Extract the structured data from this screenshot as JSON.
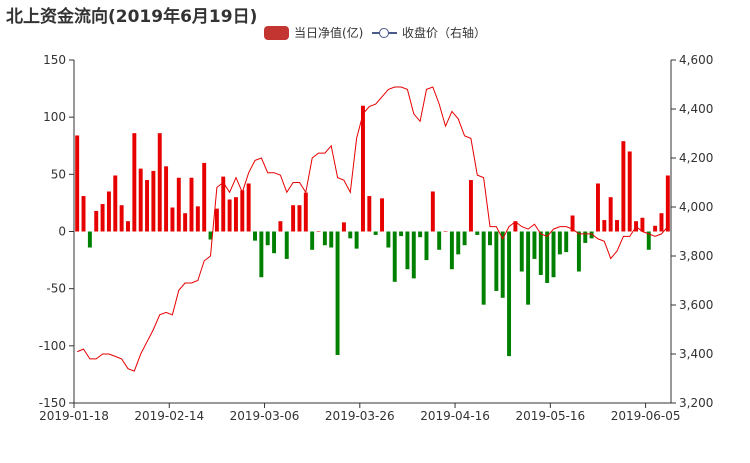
{
  "chart_data": {
    "type": "bar",
    "title": "北上资金流向(2019年6月19日)",
    "legend": {
      "position": "top-center"
    },
    "x_tick_labels": [
      "2019-01-18",
      "2019-02-14",
      "2019-03-06",
      "2019-03-26",
      "2019-04-16",
      "2019-05-16",
      "2019-06-05"
    ],
    "x_tick_indices": [
      0,
      15,
      30,
      45,
      60,
      75,
      90
    ],
    "y_left": {
      "ticks": [
        150,
        100,
        50,
        0,
        -50,
        -100,
        -150
      ],
      "ylim": [
        -150,
        150
      ]
    },
    "y_right": {
      "ticks": [
        "4,600",
        "4,400",
        "4,200",
        "4,000",
        "3,800",
        "3,600",
        "3,400",
        "3,200"
      ],
      "ylim": [
        3200,
        4600
      ]
    },
    "positive_color": "#e60000",
    "negative_color": "#008000",
    "line_color": "#e60000",
    "series": [
      {
        "name": "当日净值(亿)",
        "axis": "left",
        "values": [
          84,
          31,
          -14,
          18,
          24,
          35,
          49,
          23,
          9,
          86,
          55,
          45,
          53,
          86,
          57,
          21,
          47,
          16,
          47,
          22,
          60,
          -7,
          20,
          48,
          28,
          30,
          36,
          42,
          -8,
          -40,
          -12,
          -19,
          9,
          -24,
          23,
          23,
          34,
          -16,
          0,
          -12,
          -14,
          -108,
          8,
          -6,
          -15,
          110,
          31,
          -3,
          29,
          -14,
          -44,
          -4,
          -33,
          -41,
          -5,
          -25,
          35,
          -16,
          0,
          -33,
          -20,
          -12,
          45,
          -3,
          -64,
          -12,
          -52,
          -58,
          -109,
          9,
          -35,
          -64,
          -24,
          -38,
          -45,
          -40,
          -20,
          -18,
          14,
          -35,
          -10,
          -6,
          42,
          10,
          30,
          10,
          79,
          70,
          9,
          12,
          -16,
          5,
          16,
          49
        ]
      },
      {
        "name": "收盘价（右轴）",
        "axis": "right",
        "values": [
          3410,
          3420,
          3380,
          3380,
          3400,
          3400,
          3390,
          3380,
          3340,
          3330,
          3400,
          3450,
          3500,
          3560,
          3570,
          3560,
          3660,
          3690,
          3690,
          3700,
          3780,
          3800,
          4080,
          4100,
          4060,
          4120,
          4060,
          4140,
          4190,
          4200,
          4140,
          4140,
          4130,
          4060,
          4100,
          4100,
          4060,
          4200,
          4220,
          4220,
          4250,
          4120,
          4110,
          4060,
          4280,
          4380,
          4410,
          4420,
          4450,
          4480,
          4490,
          4490,
          4480,
          4380,
          4350,
          4480,
          4490,
          4420,
          4330,
          4390,
          4360,
          4290,
          4280,
          4130,
          4120,
          3920,
          3920,
          3870,
          3920,
          3940,
          3920,
          3910,
          3930,
          3890,
          3880,
          3910,
          3920,
          3920,
          3910,
          3890,
          3890,
          3890,
          3870,
          3860,
          3790,
          3820,
          3880,
          3880,
          3920,
          3900,
          3890,
          3880,
          3890,
          3920
        ]
      }
    ]
  }
}
